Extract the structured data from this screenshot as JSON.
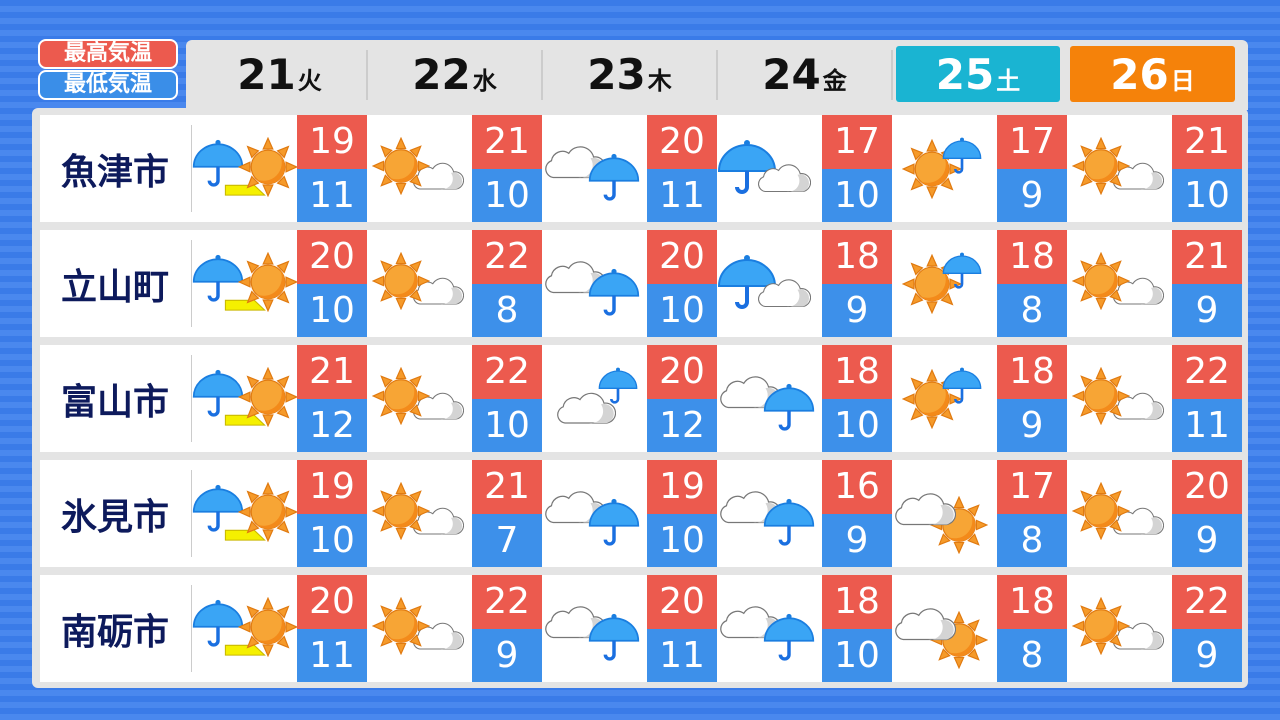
{
  "legend": {
    "high": "最高気温",
    "low": "最低気温",
    "high_color": "#ec5a4e",
    "low_color": "#3d90ea"
  },
  "days": [
    {
      "date": "21",
      "weekday": "火",
      "style": "normal"
    },
    {
      "date": "22",
      "weekday": "水",
      "style": "normal"
    },
    {
      "date": "23",
      "weekday": "木",
      "style": "normal"
    },
    {
      "date": "24",
      "weekday": "金",
      "style": "normal"
    },
    {
      "date": "25",
      "weekday": "土",
      "style": "sat",
      "color": "#1ab4d2"
    },
    {
      "date": "26",
      "weekday": "日",
      "style": "sun",
      "color": "#f5820a"
    }
  ],
  "cities": [
    {
      "name": "魚津市",
      "forecast": [
        {
          "weather": "rain-then-sun",
          "high": "19",
          "low": "11"
        },
        {
          "weather": "sun-cloud",
          "high": "21",
          "low": "10"
        },
        {
          "weather": "cloud-rain",
          "high": "20",
          "low": "11"
        },
        {
          "weather": "rain-cloud",
          "high": "17",
          "low": "10"
        },
        {
          "weather": "sun-sometimes-rain",
          "high": "17",
          "low": "9"
        },
        {
          "weather": "sun-cloud",
          "high": "21",
          "low": "10"
        }
      ]
    },
    {
      "name": "立山町",
      "forecast": [
        {
          "weather": "rain-then-sun",
          "high": "20",
          "low": "10"
        },
        {
          "weather": "sun-cloud",
          "high": "22",
          "low": "8"
        },
        {
          "weather": "cloud-rain",
          "high": "20",
          "low": "10"
        },
        {
          "weather": "rain-cloud",
          "high": "18",
          "low": "9"
        },
        {
          "weather": "sun-sometimes-rain",
          "high": "18",
          "low": "8"
        },
        {
          "weather": "sun-cloud",
          "high": "21",
          "low": "9"
        }
      ]
    },
    {
      "name": "富山市",
      "forecast": [
        {
          "weather": "rain-then-sun",
          "high": "21",
          "low": "12"
        },
        {
          "weather": "sun-cloud",
          "high": "22",
          "low": "10"
        },
        {
          "weather": "cloud-sometimes-rain",
          "high": "20",
          "low": "12"
        },
        {
          "weather": "cloud-rain",
          "high": "18",
          "low": "10"
        },
        {
          "weather": "sun-sometimes-rain",
          "high": "18",
          "low": "9"
        },
        {
          "weather": "sun-cloud",
          "high": "22",
          "low": "11"
        }
      ]
    },
    {
      "name": "氷見市",
      "forecast": [
        {
          "weather": "rain-then-sun",
          "high": "19",
          "low": "10"
        },
        {
          "weather": "sun-cloud",
          "high": "21",
          "low": "7"
        },
        {
          "weather": "cloud-rain",
          "high": "19",
          "low": "10"
        },
        {
          "weather": "cloud-rain",
          "high": "16",
          "low": "9"
        },
        {
          "weather": "cloud-sun",
          "high": "17",
          "low": "8"
        },
        {
          "weather": "sun-cloud",
          "high": "20",
          "low": "9"
        }
      ]
    },
    {
      "name": "南砺市",
      "forecast": [
        {
          "weather": "rain-then-sun",
          "high": "20",
          "low": "11"
        },
        {
          "weather": "sun-cloud",
          "high": "22",
          "low": "9"
        },
        {
          "weather": "cloud-rain",
          "high": "20",
          "low": "11"
        },
        {
          "weather": "cloud-rain",
          "high": "18",
          "low": "10"
        },
        {
          "weather": "cloud-sun",
          "high": "18",
          "low": "8"
        },
        {
          "weather": "sun-cloud",
          "high": "22",
          "low": "9"
        }
      ]
    }
  ]
}
